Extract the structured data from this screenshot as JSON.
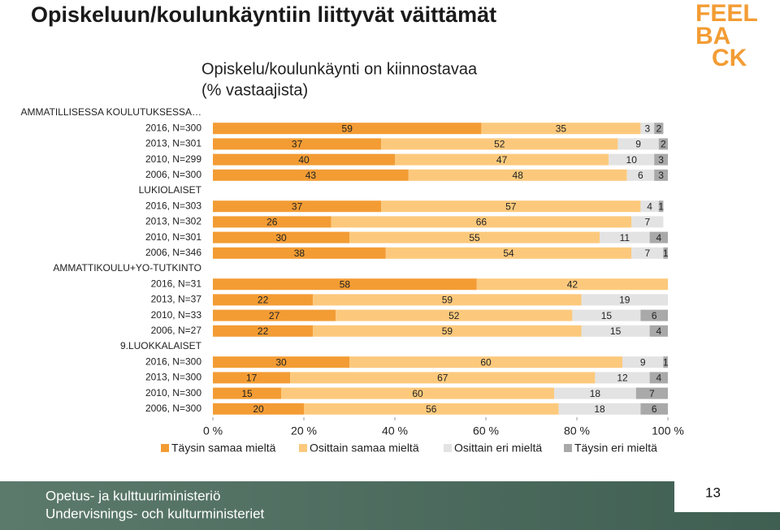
{
  "slide_title": "Opiskeluun/koulunkäyntiin liittyvät väittämät",
  "logo": [
    "FEEL",
    "BA",
    "CK"
  ],
  "footer": {
    "lines": [
      "Opetus- ja kulttuuriministeriö",
      "Undervisnings- och kulturministeriet"
    ],
    "page_number": "13"
  },
  "chart_data": {
    "type": "stacked_barh",
    "title": "Opiskelu/koulunkäynti on kiinnostavaa",
    "subtitle": "(% vastaajista)",
    "categories": [
      "AMMATILLISESSA KOULUTUKSESSA…",
      "2016, N=300",
      "2013, N=301",
      "2010, N=299",
      "2006, N=300",
      "LUKIOLAISET",
      "2016, N=303",
      "2013, N=302",
      "2010, N=301",
      "2006, N=346",
      "AMMATTIKOULU+YO-TUTKINTO",
      "2016, N=31",
      "2013, N=37",
      "2010, N=33",
      "2006, N=27",
      "9.LUOKKALAISET",
      "2016, N=300",
      "2013, N=300",
      "2010, N=300",
      "2006, N=300"
    ],
    "series": [
      {
        "name": "Täysin samaa mieltä",
        "color": "#f39c34",
        "values": [
          null,
          59,
          37,
          40,
          43,
          null,
          37,
          26,
          30,
          38,
          null,
          58,
          22,
          27,
          22,
          null,
          30,
          17,
          15,
          20
        ]
      },
      {
        "name": "Osittain samaa mieltä",
        "color": "#fcc97c",
        "values": [
          null,
          35,
          52,
          47,
          48,
          null,
          57,
          66,
          55,
          54,
          null,
          42,
          59,
          52,
          59,
          null,
          60,
          67,
          60,
          56
        ]
      },
      {
        "name": "Osittain eri mieltä",
        "color": "#e3e3e3",
        "values": [
          null,
          3,
          9,
          10,
          6,
          null,
          4,
          7,
          11,
          7,
          null,
          null,
          19,
          15,
          15,
          null,
          9,
          12,
          18,
          18
        ]
      },
      {
        "name": "Täysin eri mieltä",
        "color": "#a9a9a9",
        "values": [
          null,
          2,
          2,
          3,
          3,
          null,
          1,
          null,
          4,
          1,
          null,
          null,
          null,
          6,
          4,
          null,
          1,
          4,
          7,
          6
        ]
      }
    ],
    "xlim": [
      0,
      100
    ],
    "xticks": [
      {
        "value": 0,
        "label": "0 %"
      },
      {
        "value": 20,
        "label": "20 %"
      },
      {
        "value": 40,
        "label": "40 %"
      },
      {
        "value": 60,
        "label": "60 %"
      },
      {
        "value": 80,
        "label": "80 %"
      },
      {
        "value": 100,
        "label": "100 %"
      }
    ]
  }
}
